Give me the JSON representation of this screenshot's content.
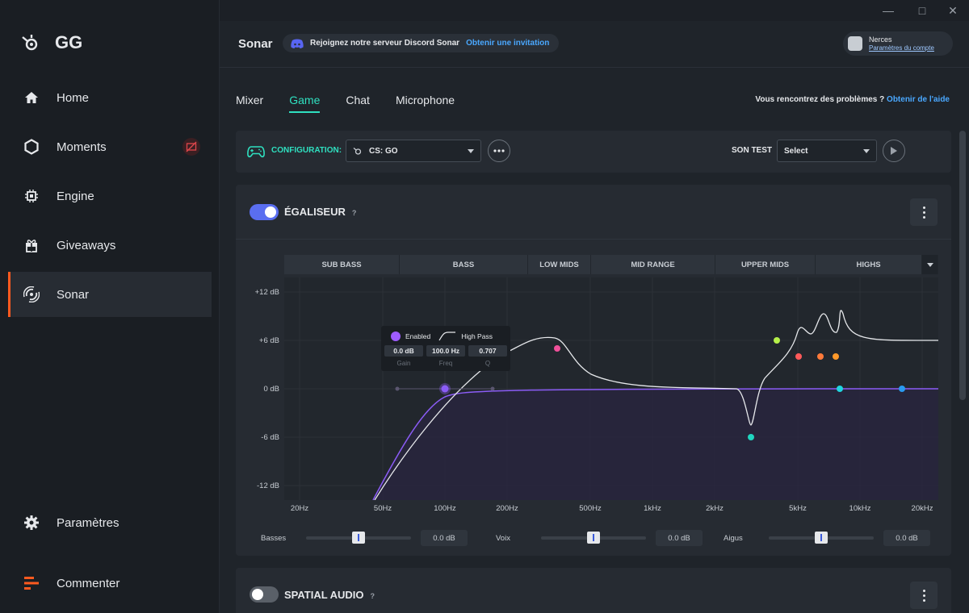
{
  "app": {
    "logo_text": "GG"
  },
  "sidebar": {
    "items": [
      {
        "label": "Home",
        "icon": "home-icon"
      },
      {
        "label": "Moments",
        "icon": "hexagon-icon"
      },
      {
        "label": "Engine",
        "icon": "chip-icon"
      },
      {
        "label": "Giveaways",
        "icon": "gift-icon"
      },
      {
        "label": "Sonar",
        "icon": "sonar-icon",
        "active": true
      }
    ],
    "settings_label": "Paramètres",
    "feedback_label": "Commenter"
  },
  "header": {
    "title": "Sonar",
    "discord_text": "Rejoignez notre serveur Discord Sonar",
    "discord_link": "Obtenir une invitation",
    "account_name": "Nerces",
    "account_link": "Paramètres du compte"
  },
  "tabs": [
    {
      "label": "Mixer",
      "active": false
    },
    {
      "label": "Game",
      "active": true
    },
    {
      "label": "Chat",
      "active": false
    },
    {
      "label": "Microphone",
      "active": false
    }
  ],
  "help": {
    "question": "Vous rencontrez des problèmes ?",
    "link": "Obtenir de l'aide"
  },
  "config": {
    "label": "CONFIGURATION:",
    "selected": "CS: GO",
    "sound_test_label": "SON TEST",
    "sound_test_placeholder": "Select"
  },
  "equalizer": {
    "title": "ÉGALISEUR",
    "help": "?",
    "enabled": true,
    "bands": [
      "SUB BASS",
      "BASS",
      "LOW MIDS",
      "MID RANGE",
      "UPPER MIDS",
      "HIGHS"
    ],
    "y_ticks": [
      "+12 dB",
      "+6 dB",
      "0 dB",
      "-6 dB",
      "-12 dB"
    ],
    "x_ticks": [
      "20Hz",
      "50Hz",
      "100Hz",
      "200Hz",
      "500Hz",
      "1kHz",
      "2kHz",
      "5kHz",
      "10kHz",
      "20kHz"
    ],
    "tooltip": {
      "enabled_label": "Enabled",
      "filter_type": "High Pass",
      "gain": "0.0 dB",
      "freq": "100.0 Hz",
      "q": "0.707",
      "gain_caption": "Gain",
      "freq_caption": "Freq",
      "q_caption": "Q"
    },
    "sliders": [
      {
        "label": "Basses",
        "value": "0.0 dB",
        "level": 0.5
      },
      {
        "label": "Voix",
        "value": "0.0 dB",
        "level": 0.5
      },
      {
        "label": "Aigus",
        "value": "0.0 dB",
        "level": 0.5
      }
    ]
  },
  "spatial_audio": {
    "title": "SPATIAL AUDIO",
    "help": "?",
    "enabled": false
  },
  "colors": {
    "accent": "#2fe0c0",
    "toggle_on": "#5a6ef0",
    "sonar_active": "#ff5a1f",
    "link": "#4aa8ff"
  }
}
